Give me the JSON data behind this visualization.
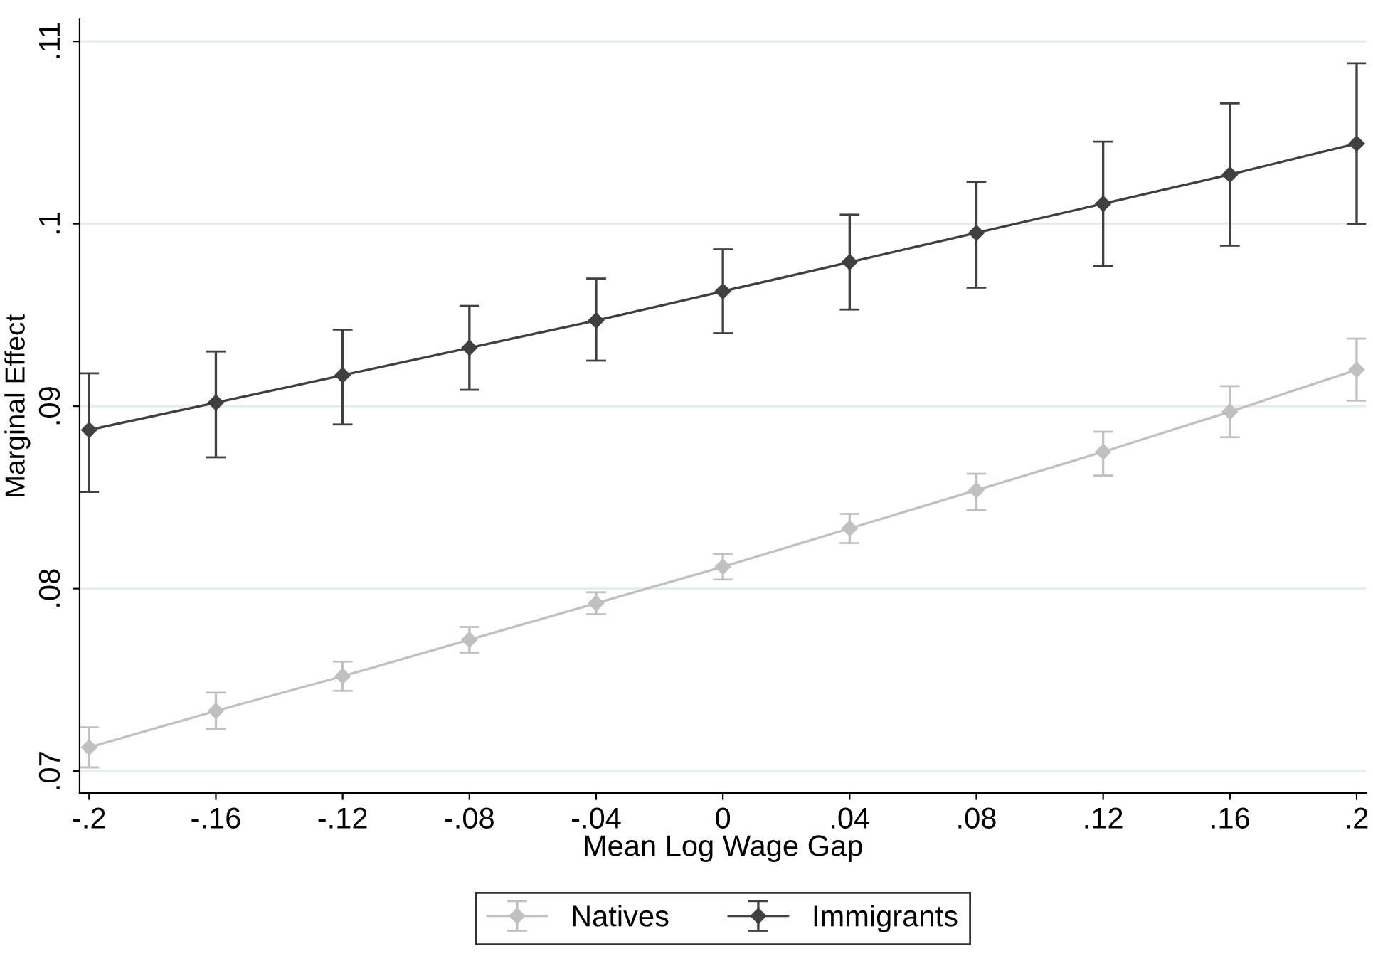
{
  "chart_data": {
    "type": "line",
    "xlabel": "Mean Log Wage Gap",
    "ylabel": "Marginal Effect",
    "x": [
      -0.2,
      -0.16,
      -0.12,
      -0.08,
      -0.04,
      0,
      0.04,
      0.08,
      0.12,
      0.16,
      0.2
    ],
    "series": [
      {
        "name": "Natives",
        "color": "#c0c0c0",
        "values": [
          0.0713,
          0.0733,
          0.0752,
          0.0772,
          0.0792,
          0.0812,
          0.0833,
          0.0854,
          0.0875,
          0.0897,
          0.092
        ],
        "errors": [
          [
            0.0702,
            0.0724
          ],
          [
            0.0723,
            0.0743
          ],
          [
            0.0744,
            0.076
          ],
          [
            0.0765,
            0.0779
          ],
          [
            0.0786,
            0.0798
          ],
          [
            0.0805,
            0.0819
          ],
          [
            0.0825,
            0.0841
          ],
          [
            0.0843,
            0.0863
          ],
          [
            0.0862,
            0.0886
          ],
          [
            0.0883,
            0.0911
          ],
          [
            0.0903,
            0.0937
          ]
        ]
      },
      {
        "name": "Immigrants",
        "color": "#404040",
        "values": [
          0.0887,
          0.0902,
          0.0917,
          0.0932,
          0.0947,
          0.0963,
          0.0979,
          0.0995,
          0.1011,
          0.1027,
          0.1044
        ],
        "errors": [
          [
            0.0853,
            0.0918
          ],
          [
            0.0872,
            0.093
          ],
          [
            0.089,
            0.0942
          ],
          [
            0.0909,
            0.0955
          ],
          [
            0.0925,
            0.097
          ],
          [
            0.094,
            0.0986
          ],
          [
            0.0953,
            0.1005
          ],
          [
            0.0965,
            0.1023
          ],
          [
            0.0977,
            0.1045
          ],
          [
            0.0988,
            0.1066
          ],
          [
            0.1,
            0.1088
          ]
        ]
      }
    ],
    "xlim": [
      -0.203,
      0.203
    ],
    "ylim": [
      0.0688,
      0.1112
    ],
    "xticks": [
      {
        "value": -0.2,
        "label": "-.2"
      },
      {
        "value": -0.16,
        "label": "-.16"
      },
      {
        "value": -0.12,
        "label": "-.12"
      },
      {
        "value": -0.08,
        "label": "-.08"
      },
      {
        "value": -0.04,
        "label": "-.04"
      },
      0,
      {
        "value": 0.04,
        "label": ".04"
      },
      {
        "value": 0.08,
        "label": ".08"
      },
      {
        "value": 0.12,
        "label": ".12"
      },
      {
        "value": 0.16,
        "label": ".16"
      },
      {
        "value": 0.2,
        "label": ".2"
      }
    ],
    "yticks": [
      {
        "value": 0.07,
        "label": ".07"
      },
      {
        "value": 0.08,
        "label": ".08"
      },
      {
        "value": 0.09,
        "label": ".09"
      },
      {
        "value": 0.1,
        "label": ".1"
      },
      {
        "value": 0.11,
        "label": ".11"
      }
    ],
    "grid": "y",
    "legend": "bottom",
    "marker": "diamond",
    "line_style": "solid"
  }
}
